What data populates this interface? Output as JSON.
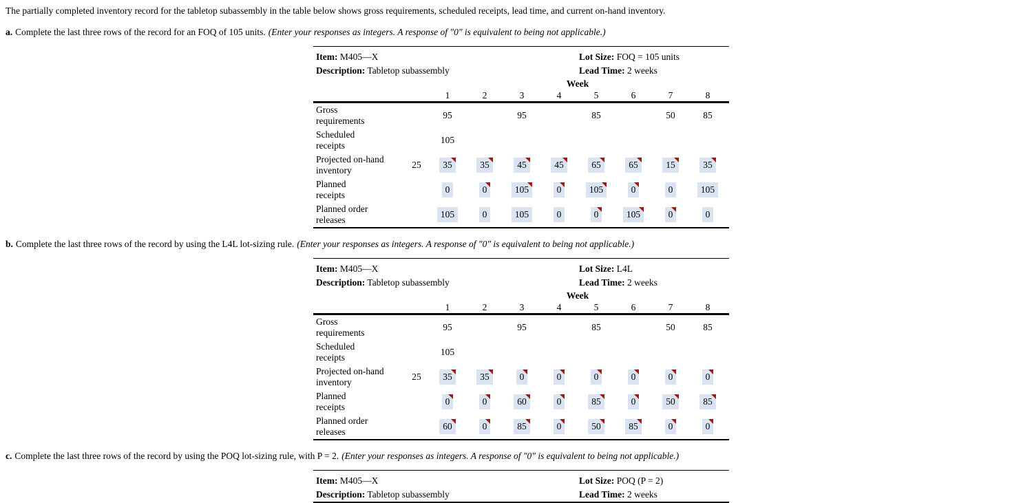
{
  "page": {
    "intro": "The partially completed inventory record for the tabletop subassembly in the table below shows gross requirements, scheduled receipts, lead time, and current on-hand inventory."
  },
  "colors": {
    "answer_bg": "#dae3f1",
    "flag_red": "#b21111"
  },
  "parts": [
    {
      "label": "a.",
      "instruction": "Complete the last three rows of the record for an FOQ of 105 units.",
      "note": "(Enter your responses as integers. A response of \"0\" is equivalent to being not applicable.)",
      "record": {
        "item_label": "Item:",
        "item": "M405—X",
        "lot_size_label": "Lot Size:",
        "lot_size": "FOQ = 105 units",
        "description_label": "Description:",
        "description": "Tabletop subassembly",
        "lead_time_label": "Lead Time:",
        "lead_time": "2 weeks",
        "week_label": "Week",
        "weeks": [
          "1",
          "2",
          "3",
          "4",
          "5",
          "6",
          "7",
          "8"
        ],
        "rows": [
          {
            "label": [
              "Gross",
              "requirements"
            ],
            "initial": "",
            "cells": [
              {
                "v": "95",
                "hl": false,
                "fl": false
              },
              {
                "v": "",
                "hl": false,
                "fl": false
              },
              {
                "v": "95",
                "hl": false,
                "fl": false
              },
              {
                "v": "",
                "hl": false,
                "fl": false
              },
              {
                "v": "85",
                "hl": false,
                "fl": false
              },
              {
                "v": "",
                "hl": false,
                "fl": false
              },
              {
                "v": "50",
                "hl": false,
                "fl": false
              },
              {
                "v": "85",
                "hl": false,
                "fl": false
              }
            ]
          },
          {
            "label": [
              "Scheduled",
              "receipts"
            ],
            "initial": "",
            "cells": [
              {
                "v": "105",
                "hl": false,
                "fl": false
              },
              {
                "v": "",
                "hl": false,
                "fl": false
              },
              {
                "v": "",
                "hl": false,
                "fl": false
              },
              {
                "v": "",
                "hl": false,
                "fl": false
              },
              {
                "v": "",
                "hl": false,
                "fl": false
              },
              {
                "v": "",
                "hl": false,
                "fl": false
              },
              {
                "v": "",
                "hl": false,
                "fl": false
              },
              {
                "v": "",
                "hl": false,
                "fl": false
              }
            ]
          },
          {
            "label": [
              "Projected on-hand",
              "inventory"
            ],
            "initial": "25",
            "cells": [
              {
                "v": "35",
                "hl": true,
                "fl": true
              },
              {
                "v": "35",
                "hl": true,
                "fl": true
              },
              {
                "v": "45",
                "hl": true,
                "fl": true
              },
              {
                "v": "45",
                "hl": true,
                "fl": true
              },
              {
                "v": "65",
                "hl": true,
                "fl": true
              },
              {
                "v": "65",
                "hl": true,
                "fl": true
              },
              {
                "v": "15",
                "hl": true,
                "fl": true
              },
              {
                "v": "35",
                "hl": true,
                "fl": true
              }
            ]
          },
          {
            "label": [
              "Planned",
              "receipts"
            ],
            "initial": "",
            "cells": [
              {
                "v": "0",
                "hl": true,
                "fl": false
              },
              {
                "v": "0",
                "hl": true,
                "fl": true
              },
              {
                "v": "105",
                "hl": true,
                "fl": true
              },
              {
                "v": "0",
                "hl": true,
                "fl": true
              },
              {
                "v": "105",
                "hl": true,
                "fl": true
              },
              {
                "v": "0",
                "hl": true,
                "fl": true
              },
              {
                "v": "0",
                "hl": true,
                "fl": false
              },
              {
                "v": "105",
                "hl": true,
                "fl": false
              }
            ]
          },
          {
            "label": [
              "Planned order",
              "releases"
            ],
            "initial": "",
            "cells": [
              {
                "v": "105",
                "hl": true,
                "fl": false
              },
              {
                "v": "0",
                "hl": true,
                "fl": false
              },
              {
                "v": "105",
                "hl": true,
                "fl": false
              },
              {
                "v": "0",
                "hl": true,
                "fl": false
              },
              {
                "v": "0",
                "hl": true,
                "fl": true
              },
              {
                "v": "105",
                "hl": true,
                "fl": true
              },
              {
                "v": "0",
                "hl": true,
                "fl": true
              },
              {
                "v": "0",
                "hl": true,
                "fl": false
              }
            ]
          }
        ]
      }
    },
    {
      "label": "b.",
      "instruction": "Complete the last three rows of the record by using the L4L lot-sizing rule.",
      "note": "(Enter your responses as integers. A response of \"0\" is equivalent to being not applicable.)",
      "record": {
        "item_label": "Item:",
        "item": "M405—X",
        "lot_size_label": "Lot Size:",
        "lot_size": "L4L",
        "description_label": "Description:",
        "description": "Tabletop subassembly",
        "lead_time_label": "Lead Time:",
        "lead_time": "2 weeks",
        "week_label": "Week",
        "weeks": [
          "1",
          "2",
          "3",
          "4",
          "5",
          "6",
          "7",
          "8"
        ],
        "rows": [
          {
            "label": [
              "Gross",
              "requirements"
            ],
            "initial": "",
            "cells": [
              {
                "v": "95",
                "hl": false,
                "fl": false
              },
              {
                "v": "",
                "hl": false,
                "fl": false
              },
              {
                "v": "95",
                "hl": false,
                "fl": false
              },
              {
                "v": "",
                "hl": false,
                "fl": false
              },
              {
                "v": "85",
                "hl": false,
                "fl": false
              },
              {
                "v": "",
                "hl": false,
                "fl": false
              },
              {
                "v": "50",
                "hl": false,
                "fl": false
              },
              {
                "v": "85",
                "hl": false,
                "fl": false
              }
            ]
          },
          {
            "label": [
              "Scheduled",
              "receipts"
            ],
            "initial": "",
            "cells": [
              {
                "v": "105",
                "hl": false,
                "fl": false
              },
              {
                "v": "",
                "hl": false,
                "fl": false
              },
              {
                "v": "",
                "hl": false,
                "fl": false
              },
              {
                "v": "",
                "hl": false,
                "fl": false
              },
              {
                "v": "",
                "hl": false,
                "fl": false
              },
              {
                "v": "",
                "hl": false,
                "fl": false
              },
              {
                "v": "",
                "hl": false,
                "fl": false
              },
              {
                "v": "",
                "hl": false,
                "fl": false
              }
            ]
          },
          {
            "label": [
              "Projected on-hand",
              "inventory"
            ],
            "initial": "25",
            "cells": [
              {
                "v": "35",
                "hl": true,
                "fl": true
              },
              {
                "v": "35",
                "hl": true,
                "fl": true
              },
              {
                "v": "0",
                "hl": true,
                "fl": true
              },
              {
                "v": "0",
                "hl": true,
                "fl": true
              },
              {
                "v": "0",
                "hl": true,
                "fl": true
              },
              {
                "v": "0",
                "hl": true,
                "fl": true
              },
              {
                "v": "0",
                "hl": true,
                "fl": true
              },
              {
                "v": "0",
                "hl": true,
                "fl": true
              }
            ]
          },
          {
            "label": [
              "Planned",
              "receipts"
            ],
            "initial": "",
            "cells": [
              {
                "v": "0",
                "hl": true,
                "fl": true
              },
              {
                "v": "0",
                "hl": true,
                "fl": true
              },
              {
                "v": "60",
                "hl": true,
                "fl": true
              },
              {
                "v": "0",
                "hl": true,
                "fl": true
              },
              {
                "v": "85",
                "hl": true,
                "fl": true
              },
              {
                "v": "0",
                "hl": true,
                "fl": true
              },
              {
                "v": "50",
                "hl": true,
                "fl": true
              },
              {
                "v": "85",
                "hl": true,
                "fl": true
              }
            ]
          },
          {
            "label": [
              "Planned order",
              "releases"
            ],
            "initial": "",
            "cells": [
              {
                "v": "60",
                "hl": true,
                "fl": true
              },
              {
                "v": "0",
                "hl": true,
                "fl": true
              },
              {
                "v": "85",
                "hl": true,
                "fl": true
              },
              {
                "v": "0",
                "hl": true,
                "fl": true
              },
              {
                "v": "50",
                "hl": true,
                "fl": true
              },
              {
                "v": "85",
                "hl": true,
                "fl": true
              },
              {
                "v": "0",
                "hl": true,
                "fl": true
              },
              {
                "v": "0",
                "hl": true,
                "fl": true
              }
            ]
          }
        ]
      }
    },
    {
      "label": "c.",
      "instruction": "Complete the last three rows of the record by using the POQ lot-sizing rule, with P = 2.",
      "note": "(Enter your responses as integers. A response of \"0\" is equivalent to being not applicable.)",
      "record": {
        "item_label": "Item:",
        "item": "M405—X",
        "lot_size_label": "Lot Size:",
        "lot_size": "POQ (P = 2)",
        "description_label": "Description:",
        "description": "Tabletop subassembly",
        "lead_time_label": "Lead Time:",
        "lead_time": "2 weeks"
      }
    }
  ]
}
